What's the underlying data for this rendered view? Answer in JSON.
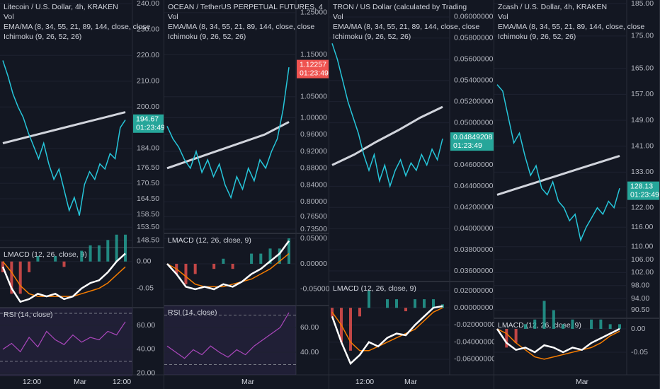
{
  "colors": {
    "close": "#26c6da",
    "ma": "#d1d4dc",
    "macd": "#ffffff",
    "signal": "#f57c00",
    "rsi": "#ab47bc"
  },
  "panels": [
    {
      "title": "Litecoin / U.S. Dollar, 4h, KRAKEN",
      "vol_label": "Vol",
      "ema_label": "EMA/MA (8, 34, 55, 21, 89, 144, close, close",
      "ichimoku_label": "Ichimoku (9, 26, 52, 26)",
      "ylim": [
        147,
        241.4
      ],
      "yticks": [
        {
          "value": 240,
          "label": "240.00"
        },
        {
          "value": 230,
          "label": "230.00"
        },
        {
          "value": 220,
          "label": "220.00"
        },
        {
          "value": 210,
          "label": "210.00"
        },
        {
          "value": 200,
          "label": "200.00"
        },
        {
          "value": 184,
          "label": "184.00"
        },
        {
          "value": 176.5,
          "label": "176.50"
        },
        {
          "value": 170.5,
          "label": "170.50"
        },
        {
          "value": 164.5,
          "label": "164.50"
        },
        {
          "value": 158.5,
          "label": "158.50"
        },
        {
          "value": 153.5,
          "label": "153.50"
        },
        {
          "value": 148.5,
          "label": "148.50"
        }
      ],
      "close": [
        218,
        212,
        205,
        200,
        196,
        190,
        185,
        180,
        186,
        178,
        172,
        176,
        168,
        160,
        165,
        158,
        170,
        175,
        172,
        178,
        176,
        182,
        180,
        192,
        195
      ],
      "ma": [
        186,
        188,
        190,
        192,
        194,
        196,
        198
      ],
      "last_price": 194.67,
      "last_price_label": "194.67",
      "countdown": "01:23:49",
      "last_price_color": "#26a69a",
      "indicators": [
        {
          "label": "LMACD (12, 26, close, 9)",
          "ylim": [
            -0.082,
            0.026
          ],
          "yticks": [
            {
              "value": 0,
              "label": "0.00"
            },
            {
              "value": -0.05,
              "label": "-0.05"
            }
          ],
          "macd": [
            -0.01,
            -0.05,
            -0.075,
            -0.07,
            -0.06,
            -0.065,
            -0.06,
            -0.07,
            -0.065,
            -0.05,
            -0.04,
            -0.035,
            -0.02,
            0,
            0.015
          ],
          "signal": [
            0,
            -0.02,
            -0.045,
            -0.06,
            -0.065,
            -0.065,
            -0.065,
            -0.065,
            -0.065,
            -0.06,
            -0.055,
            -0.05,
            -0.04,
            -0.025,
            -0.01
          ]
        },
        {
          "label": "RSI (14, close)",
          "ylim": [
            17.6,
            74.7
          ],
          "yticks": [
            {
              "value": 60,
              "label": "60.00"
            },
            {
              "value": 40,
              "label": "40.00"
            },
            {
              "value": 20,
              "label": "20.00"
            }
          ],
          "bands": [
            70,
            30
          ],
          "rsi": [
            40,
            45,
            38,
            50,
            42,
            55,
            48,
            44,
            52,
            46,
            50,
            48,
            55,
            52,
            63
          ]
        }
      ],
      "time_labels": [
        "12:00",
        "Mar",
        "12:00"
      ]
    },
    {
      "title": "OCEAN / TetherUS PERPETUAL FUTURES, 4",
      "vol_label": "Vol",
      "ema_label": "EMA/MA (8, 34, 55, 21, 89, 144, close, close",
      "ichimoku_label": "Ichimoku (9, 26, 52, 26)",
      "ylim": [
        0.725,
        1.28
      ],
      "yticks": [
        {
          "value": 1.25,
          "label": "1.25000"
        },
        {
          "value": 1.15,
          "label": "1.15000"
        },
        {
          "value": 1.05,
          "label": "1.05000"
        },
        {
          "value": 1,
          "label": "1.00000"
        },
        {
          "value": 0.96,
          "label": "0.96000"
        },
        {
          "value": 0.92,
          "label": "0.92000"
        },
        {
          "value": 0.88,
          "label": "0.88000"
        },
        {
          "value": 0.84,
          "label": "0.84000"
        },
        {
          "value": 0.8,
          "label": "0.80000"
        },
        {
          "value": 0.765,
          "label": "0.76500"
        },
        {
          "value": 0.735,
          "label": "0.73500"
        }
      ],
      "close": [
        0.98,
        0.95,
        0.93,
        0.9,
        0.88,
        0.92,
        0.87,
        0.9,
        0.86,
        0.89,
        0.84,
        0.81,
        0.86,
        0.83,
        0.88,
        0.85,
        0.9,
        0.88,
        0.92,
        0.95,
        1.02,
        1.12
      ],
      "ma": [
        0.88,
        0.9,
        0.92,
        0.94,
        0.96,
        0.99
      ],
      "last_price": 1.12257,
      "last_price_label": "1.12257",
      "countdown": "01:23:49",
      "last_price_color": "#ef5350",
      "indicators": [
        {
          "label": "LMACD (12, 26, close, 9)",
          "ylim": [
            -0.082,
            0.0597
          ],
          "yticks": [
            {
              "value": 0.05,
              "label": "0.05000"
            },
            {
              "value": 0,
              "label": "0.00000"
            },
            {
              "value": -0.05,
              "label": "-0.05000"
            }
          ],
          "macd": [
            0,
            -0.02,
            -0.045,
            -0.05,
            -0.045,
            -0.05,
            -0.04,
            -0.045,
            -0.035,
            -0.02,
            -0.01,
            0.005,
            0.02,
            0.045
          ],
          "signal": [
            0,
            -0.01,
            -0.025,
            -0.04,
            -0.045,
            -0.045,
            -0.045,
            -0.04,
            -0.035,
            -0.03,
            -0.02,
            -0.01,
            0.005,
            0.02
          ]
        },
        {
          "label": "RSI (14, close)",
          "ylim": [
            21.7,
            77.7
          ],
          "yticks": [
            {
              "value": 60,
              "label": "60.00"
            },
            {
              "value": 40,
              "label": "40.00"
            }
          ],
          "bands": [
            70,
            30
          ],
          "rsi": [
            45,
            40,
            35,
            42,
            38,
            45,
            40,
            36,
            42,
            38,
            45,
            50,
            55,
            60,
            72
          ]
        }
      ],
      "time_labels": [
        "Mar"
      ]
    },
    {
      "title": "TRON / US Dollar (calculated by Trading",
      "vol_label": "Vol",
      "ema_label": "EMA/MA (8, 34, 55, 21, 89, 144, close, close",
      "ichimoku_label": "Ichimoku (9, 26, 52, 26)",
      "ylim": [
        0.035,
        0.0616
      ],
      "yticks": [
        {
          "value": 0.06,
          "label": "0.06000000"
        },
        {
          "value": 0.058,
          "label": "0.05800000"
        },
        {
          "value": 0.056,
          "label": "0.05600000"
        },
        {
          "value": 0.054,
          "label": "0.05400000"
        },
        {
          "value": 0.052,
          "label": "0.05200000"
        },
        {
          "value": 0.05,
          "label": "0.05000000"
        },
        {
          "value": 0.046,
          "label": "0.04600000"
        },
        {
          "value": 0.044,
          "label": "0.04400000"
        },
        {
          "value": 0.042,
          "label": "0.04200000"
        },
        {
          "value": 0.04,
          "label": "0.04000000"
        },
        {
          "value": 0.038,
          "label": "0.03800000"
        },
        {
          "value": 0.036,
          "label": "0.03600000"
        }
      ],
      "close": [
        0.0575,
        0.056,
        0.054,
        0.052,
        0.0505,
        0.049,
        0.047,
        0.0455,
        0.047,
        0.0445,
        0.046,
        0.044,
        0.0455,
        0.0465,
        0.045,
        0.0462,
        0.0455,
        0.047,
        0.046,
        0.0475,
        0.0465,
        0.0485
      ],
      "ma": [
        0.046,
        0.047,
        0.0482,
        0.0493,
        0.0505,
        0.0515
      ],
      "last_price": 0.04849208,
      "last_price_label": "0.04849208",
      "countdown": "01:23:49",
      "last_price_color": "#26a69a",
      "indicators": [
        {
          "label": "LMACD (12, 26, close, 9)",
          "ylim": [
            -0.0782,
            0.0307
          ],
          "yticks": [
            {
              "value": 0.02,
              "label": "0.02000000"
            },
            {
              "value": 0,
              "label": "0.00000000"
            },
            {
              "value": -0.02,
              "label": "-0.02000000"
            },
            {
              "value": -0.04,
              "label": "-0.04000000"
            },
            {
              "value": -0.06,
              "label": "-0.06000000"
            }
          ],
          "macd": [
            -0.01,
            -0.04,
            -0.065,
            -0.055,
            -0.04,
            -0.045,
            -0.035,
            -0.03,
            -0.032,
            -0.02,
            -0.01,
            0,
            0.002
          ],
          "signal": [
            -0.005,
            -0.02,
            -0.04,
            -0.05,
            -0.05,
            -0.045,
            -0.04,
            -0.035,
            -0.03,
            -0.025,
            -0.015,
            -0.005,
            0
          ]
        }
      ],
      "time_labels": [
        "12:00",
        "Mar"
      ]
    },
    {
      "title": "Zcash / U.S. Dollar, 4h, KRAKEN",
      "vol_label": "Vol",
      "ema_label": "EMA/MA (8, 34, 55, 21, 89, 144, close, close",
      "ichimoku_label": "Ichimoku (9, 26, 52, 26)",
      "ylim": [
        87.9,
        186.1
      ],
      "yticks": [
        {
          "value": 185,
          "label": "185.00"
        },
        {
          "value": 175,
          "label": "175.00"
        },
        {
          "value": 165,
          "label": "165.00"
        },
        {
          "value": 157,
          "label": "157.00"
        },
        {
          "value": 149,
          "label": "149.00"
        },
        {
          "value": 141,
          "label": "141.00"
        },
        {
          "value": 133,
          "label": "133.00"
        },
        {
          "value": 122,
          "label": "122.00"
        },
        {
          "value": 116,
          "label": "116.00"
        },
        {
          "value": 110,
          "label": "110.00"
        },
        {
          "value": 106,
          "label": "106.00"
        },
        {
          "value": 102,
          "label": "102.00"
        },
        {
          "value": 98,
          "label": "98.00"
        },
        {
          "value": 94,
          "label": "94.00"
        },
        {
          "value": 90.5,
          "label": "90.50"
        }
      ],
      "close": [
        160,
        158,
        150,
        142,
        145,
        138,
        132,
        135,
        128,
        126,
        130,
        124,
        122,
        118,
        120,
        112,
        116,
        119,
        122,
        120,
        124,
        122,
        128
      ],
      "ma": [
        126,
        128,
        130,
        132,
        134,
        136,
        138
      ],
      "last_price": 128.13,
      "last_price_label": "128.13",
      "countdown": "01:23:49",
      "last_price_color": "#26a69a",
      "indicators": [
        {
          "label": "LMACD (12, 26, close, 9)",
          "ylim": [
            -0.0985,
            0.0227
          ],
          "yticks": [
            {
              "value": 0,
              "label": "0.00"
            },
            {
              "value": -0.05,
              "label": "-0.05"
            }
          ],
          "macd": [
            0,
            -0.03,
            -0.045,
            -0.04,
            -0.05,
            -0.035,
            -0.04,
            -0.05,
            -0.04,
            -0.045,
            -0.03,
            -0.02,
            -0.01,
            0
          ],
          "signal": [
            0,
            -0.01,
            -0.03,
            -0.045,
            -0.06,
            -0.065,
            -0.06,
            -0.055,
            -0.05,
            -0.045,
            -0.04,
            -0.03,
            -0.015,
            -0.005
          ]
        }
      ],
      "time_labels": [
        "Mar"
      ]
    }
  ]
}
